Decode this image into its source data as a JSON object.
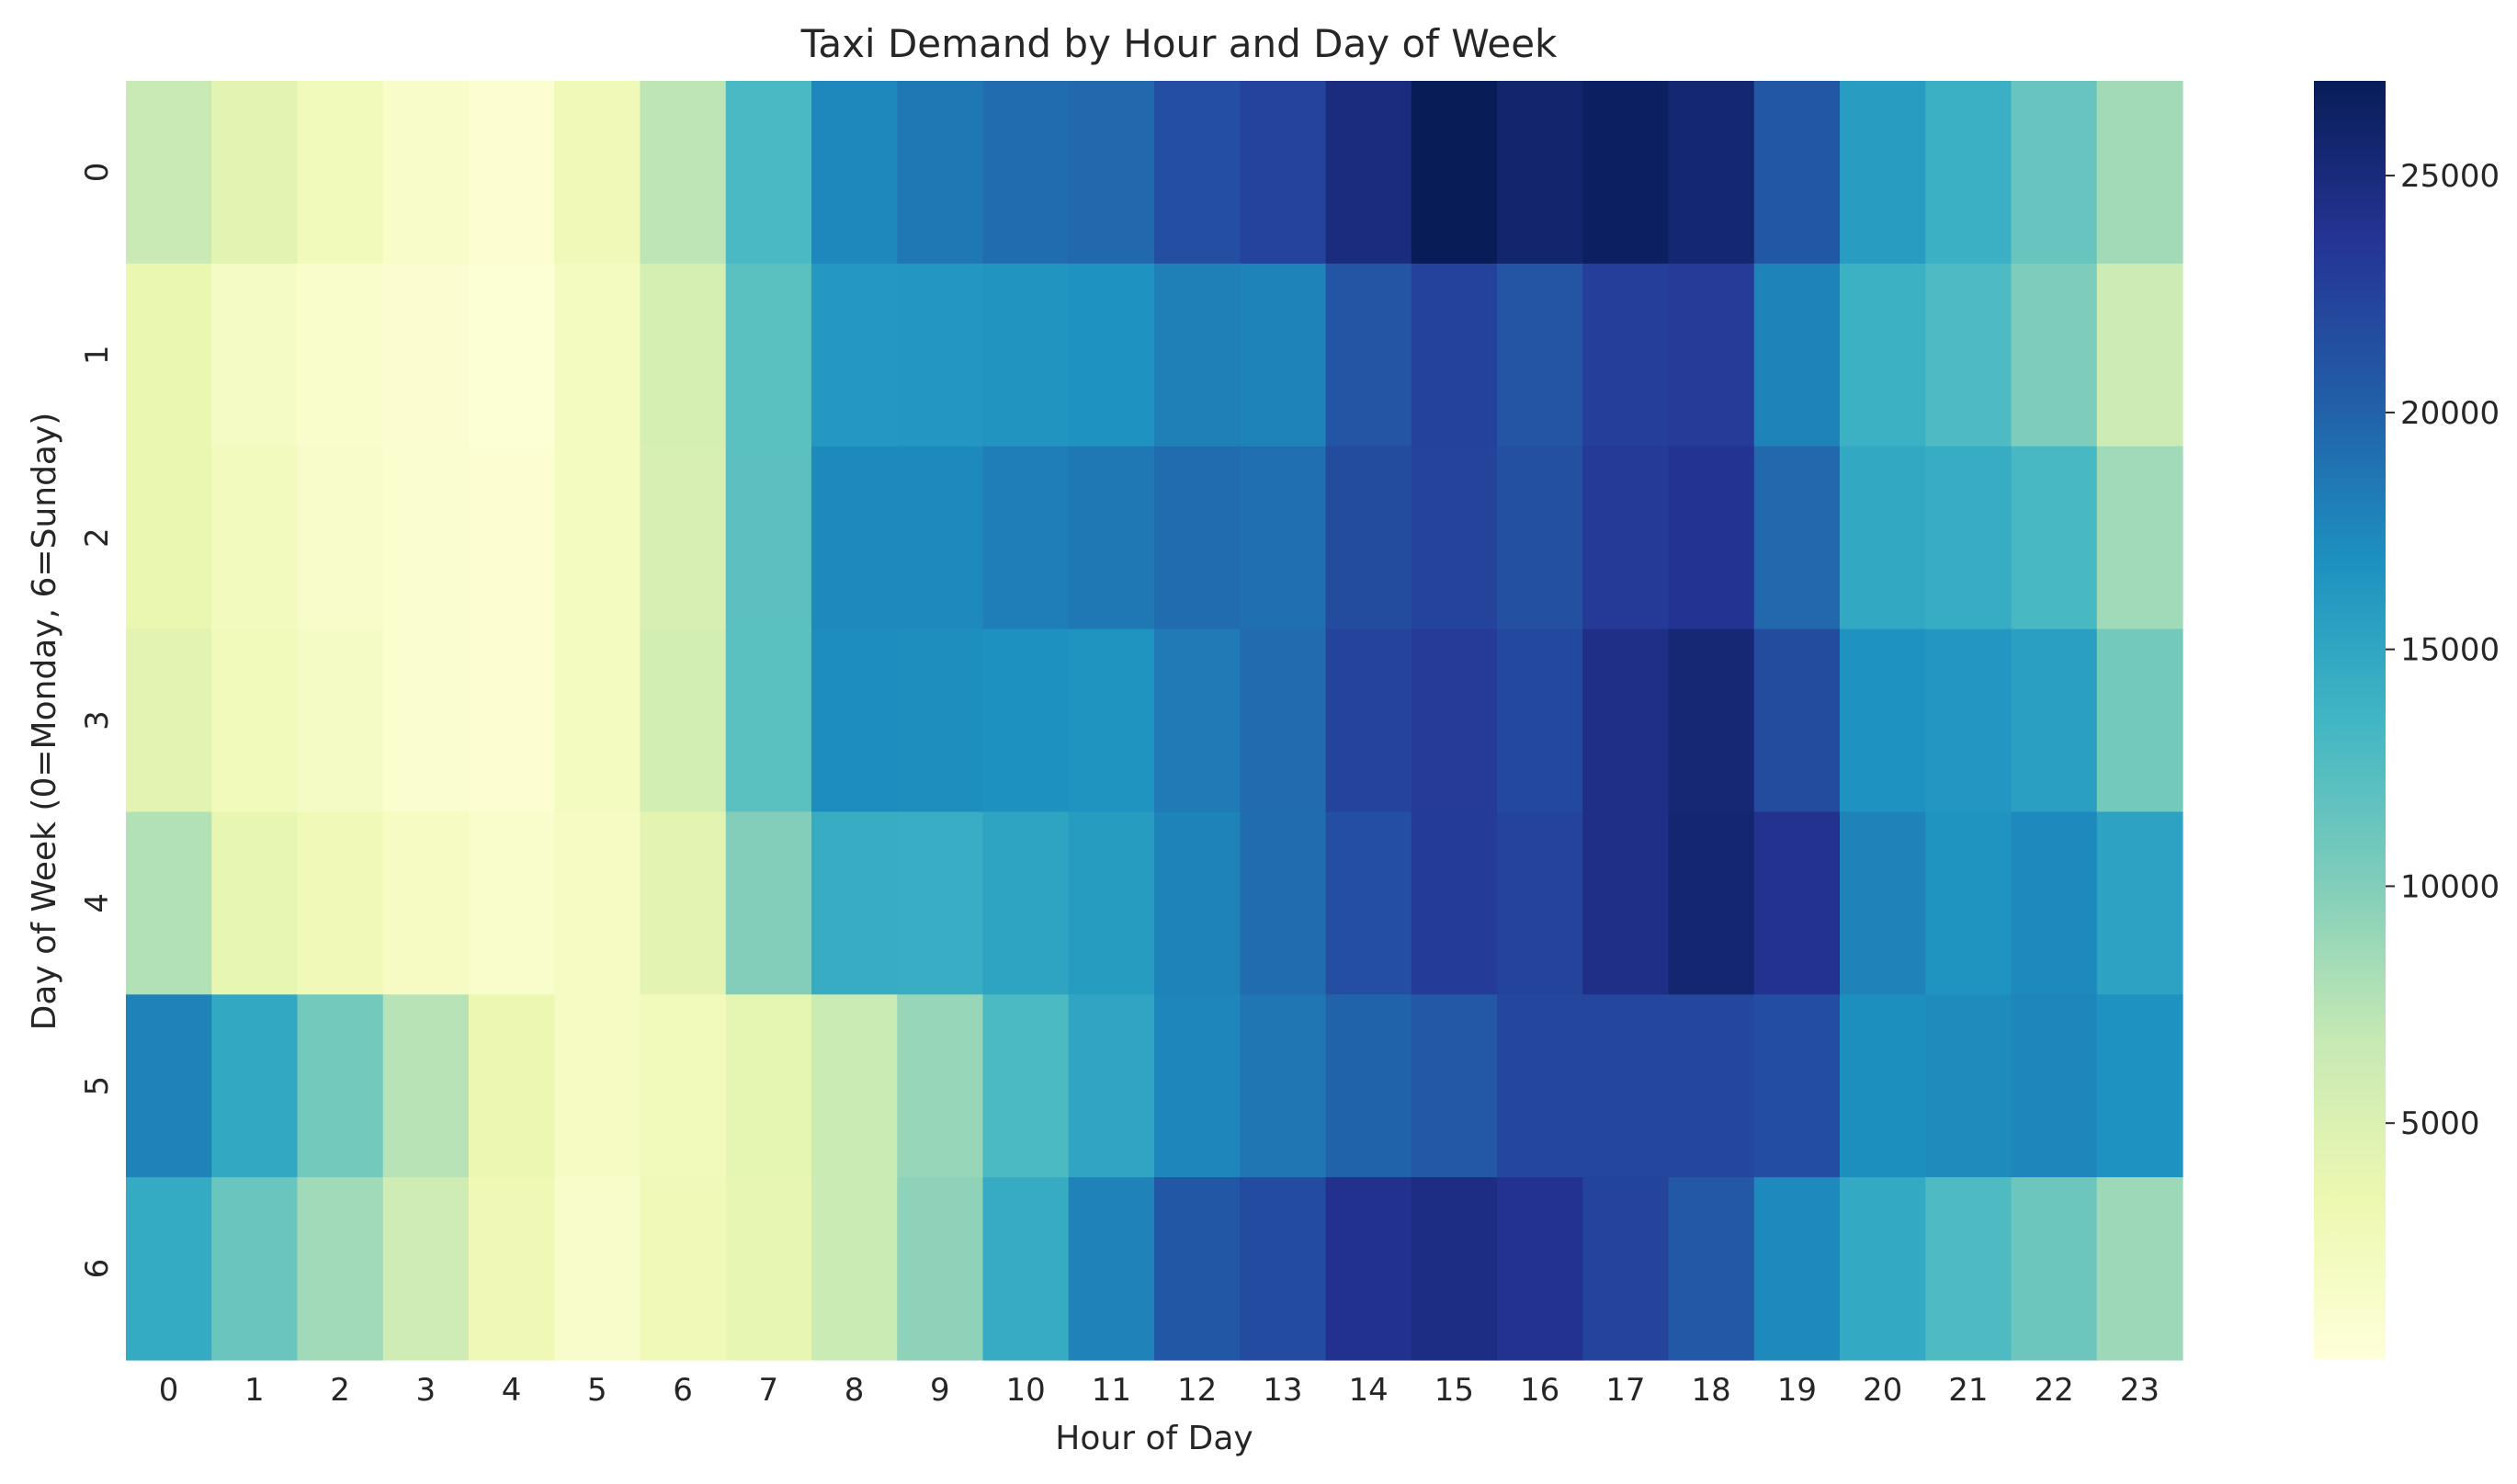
{
  "chart_data": {
    "type": "heatmap",
    "title": "Taxi Demand by Hour and Day of Week",
    "xlabel": "Hour of Day",
    "ylabel": "Day of Week (0=Monday, 6=Sunday)",
    "x_categories": [
      "0",
      "1",
      "2",
      "3",
      "4",
      "5",
      "6",
      "7",
      "8",
      "9",
      "10",
      "11",
      "12",
      "13",
      "14",
      "15",
      "16",
      "17",
      "18",
      "19",
      "20",
      "21",
      "22",
      "23"
    ],
    "y_categories": [
      "0",
      "1",
      "2",
      "3",
      "4",
      "5",
      "6"
    ],
    "values": [
      [
        6600,
        4300,
        2600,
        1400,
        600,
        2700,
        7200,
        13000,
        17500,
        18500,
        19300,
        19600,
        21500,
        22300,
        24800,
        27000,
        25800,
        26500,
        25600,
        20800,
        15800,
        14100,
        11400,
        8500
      ],
      [
        3700,
        1800,
        1200,
        800,
        500,
        2100,
        5500,
        12100,
        16200,
        16300,
        16500,
        16800,
        18000,
        17800,
        21000,
        22500,
        21000,
        22800,
        23100,
        17800,
        14000,
        12800,
        10200,
        6200
      ],
      [
        3700,
        2300,
        1300,
        900,
        600,
        2100,
        5300,
        12000,
        17400,
        17400,
        18100,
        18500,
        19300,
        19100,
        21700,
        22300,
        21400,
        23200,
        23800,
        19600,
        14800,
        14400,
        13100,
        8600
      ],
      [
        4300,
        2600,
        1800,
        1000,
        600,
        2100,
        5700,
        12100,
        17200,
        17100,
        16900,
        16600,
        18400,
        19400,
        22300,
        23100,
        21900,
        24300,
        25400,
        21700,
        16800,
        16300,
        15600,
        10700
      ],
      [
        7700,
        3900,
        2900,
        1900,
        1100,
        1900,
        4300,
        10000,
        14400,
        14300,
        15200,
        15900,
        17800,
        19300,
        21500,
        23000,
        22300,
        24300,
        25700,
        23900,
        17900,
        16600,
        17400,
        15300
      ],
      [
        17900,
        14800,
        10700,
        7500,
        3500,
        1900,
        2500,
        4100,
        6400,
        9000,
        12900,
        15100,
        17600,
        18700,
        19900,
        20700,
        22100,
        22100,
        22100,
        21600,
        17000,
        17300,
        17600,
        16800
      ],
      [
        14600,
        11300,
        8600,
        6100,
        3000,
        1300,
        2800,
        3900,
        6400,
        9400,
        14500,
        17900,
        20800,
        21800,
        24000,
        24600,
        23900,
        22400,
        20700,
        17400,
        14700,
        12800,
        11100,
        8700
      ]
    ],
    "vmin": 0,
    "vmax": 27000,
    "colormap": "YlGnBu",
    "colorbar_ticks": [
      "5000",
      "10000",
      "15000",
      "20000",
      "25000"
    ],
    "grid": false
  }
}
